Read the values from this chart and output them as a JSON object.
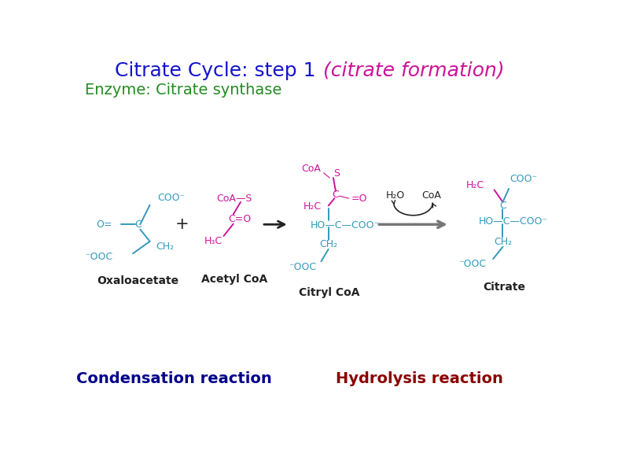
{
  "title_part1": "Citrate Cycle: step 1 ",
  "title_part2": "(citrate formation)",
  "title_color1": "#1414CC",
  "title_color2": "#CC1499",
  "title_fontsize": 18,
  "enzyme_text": "Enzyme: Citrate synthase",
  "enzyme_color": "#228B22",
  "enzyme_fontsize": 14,
  "condensation_text": "Condensation reaction",
  "condensation_color": "#00008B",
  "condensation_fontsize": 14,
  "hydrolysis_text": "Hydrolysis reaction",
  "hydrolysis_color": "#8B0000",
  "hydrolysis_fontsize": 14,
  "background_color": "#FFFFFF",
  "cyan_color": "#3399BB",
  "magenta_color": "#CC1499",
  "dark_color": "#222222",
  "lfs": 9,
  "sfs": 10
}
